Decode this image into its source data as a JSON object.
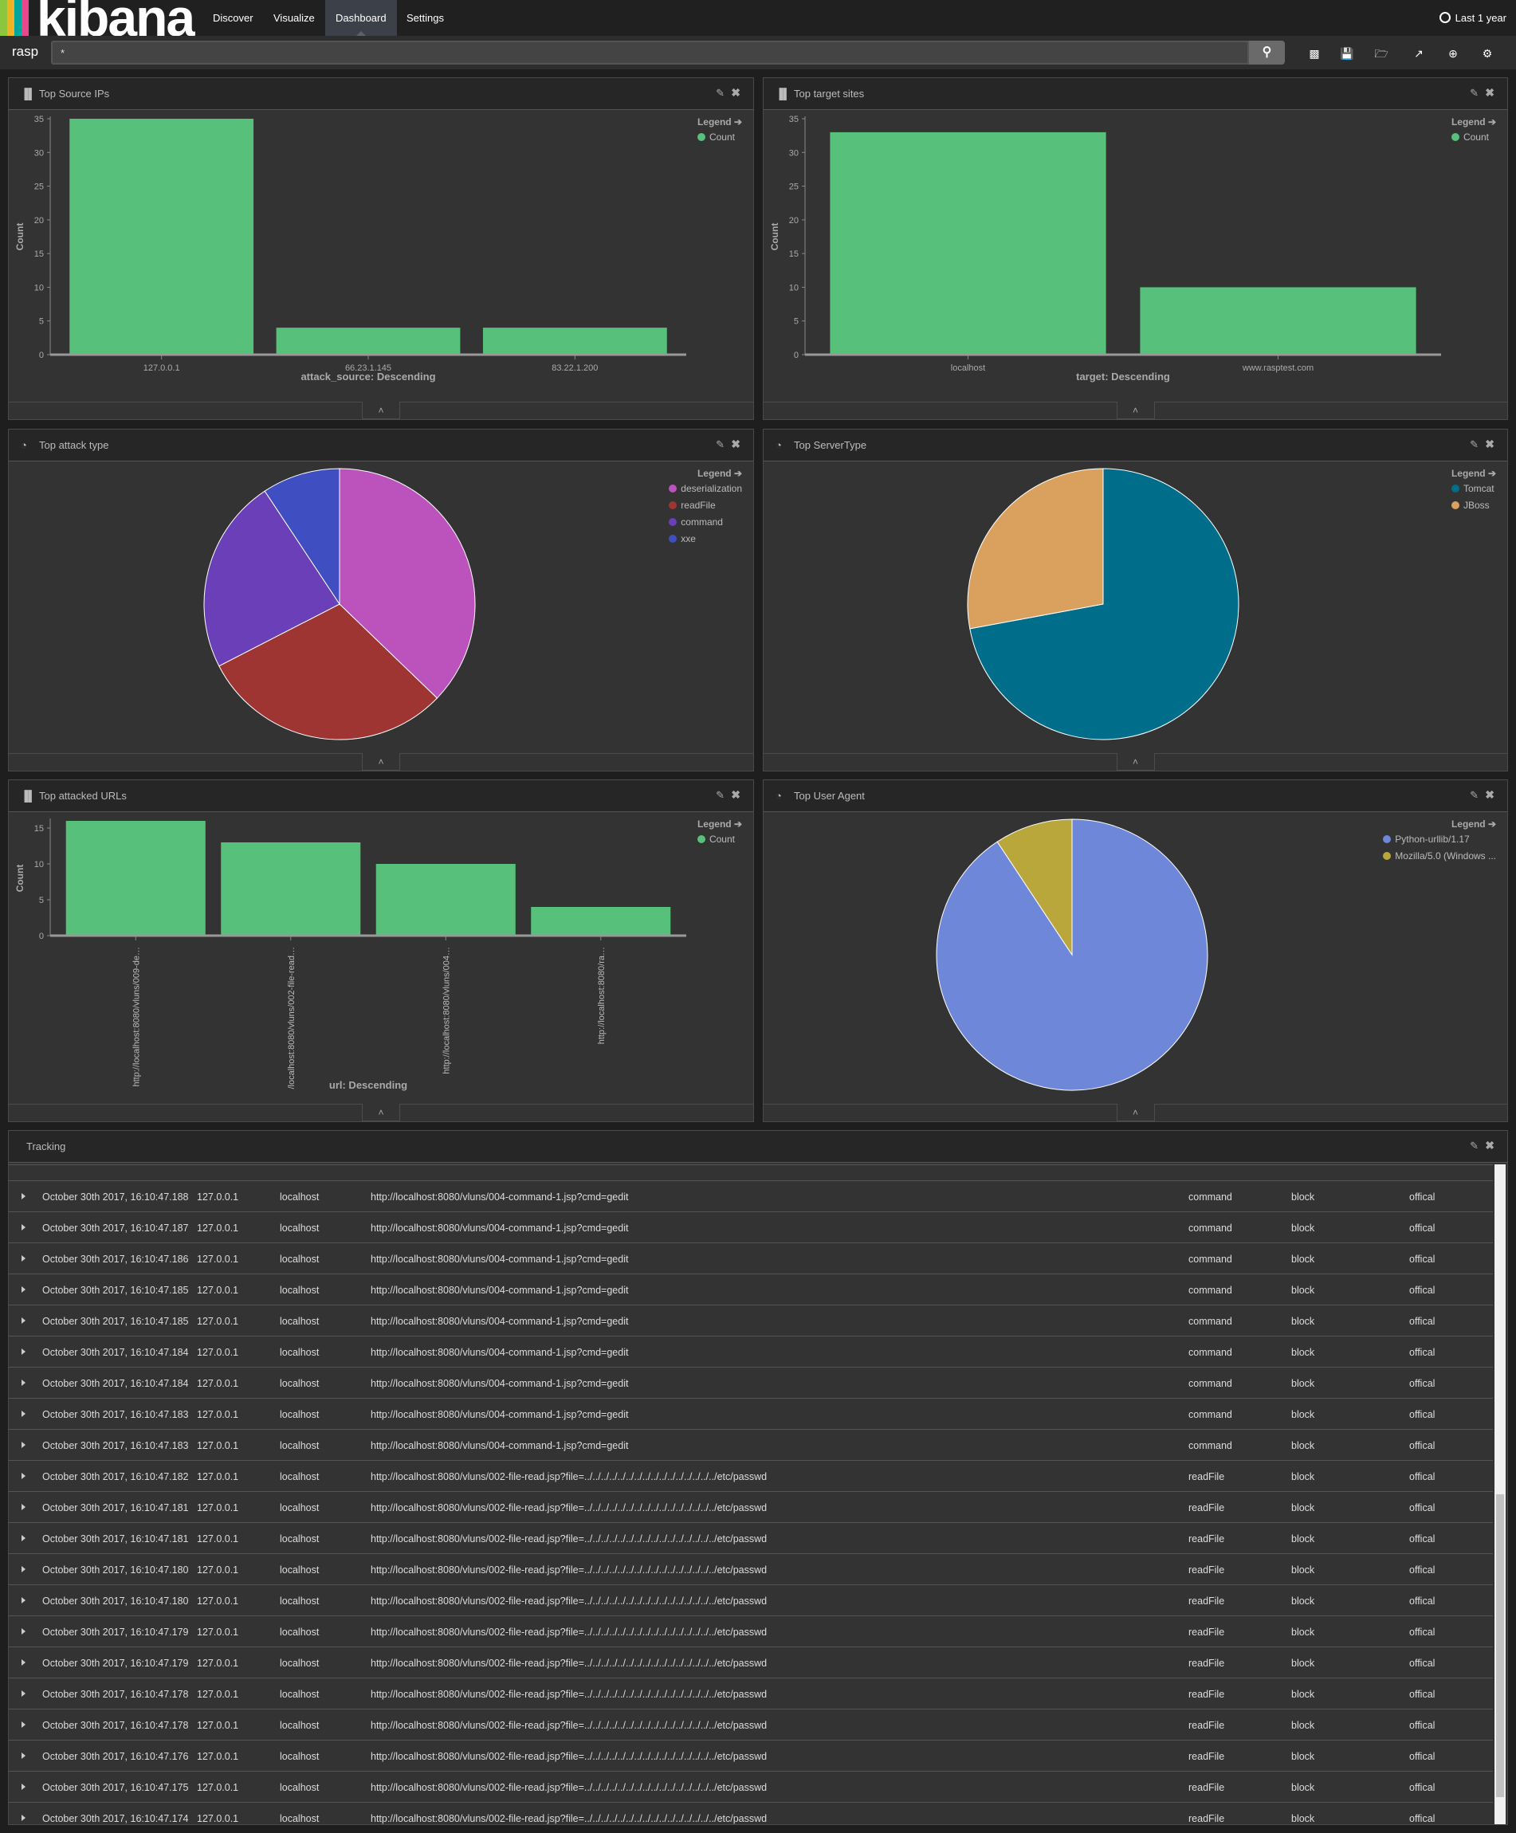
{
  "app": {
    "logo": "kibana",
    "logo_colors": [
      "#8cc63f",
      "#f0b323",
      "#00a69b",
      "#e8488b"
    ]
  },
  "nav": {
    "items": [
      {
        "label": "Discover"
      },
      {
        "label": "Visualize"
      },
      {
        "label": "Dashboard",
        "active": true
      },
      {
        "label": "Settings"
      }
    ],
    "time": "Last 1 year"
  },
  "search": {
    "index": "rasp",
    "query": "*"
  },
  "toolbar": [
    "new-dashboard",
    "save",
    "open",
    "share",
    "add-visualization",
    "options"
  ],
  "panels": {
    "source_ips": {
      "title": "Top Source IPs"
    },
    "target_sites": {
      "title": "Top target sites"
    },
    "attack_type": {
      "title": "Top attack type"
    },
    "server_type": {
      "title": "Top ServerType"
    },
    "urls": {
      "title": "Top attacked URLs"
    },
    "user_agent": {
      "title": "Top User Agent"
    },
    "tracking": {
      "title": "Tracking"
    }
  },
  "legend_title": "Legend",
  "chart_data": [
    {
      "id": "source_ips",
      "type": "bar",
      "categories": [
        "127.0.0.1",
        "66.23.1.145",
        "83.22.1.200"
      ],
      "values": [
        35,
        4,
        4
      ],
      "xlabel": "attack_source: Descending",
      "ylabel": "Count",
      "ylim": [
        0,
        35
      ],
      "yticks": [
        0,
        5,
        10,
        15,
        20,
        25,
        30,
        35
      ],
      "legend": [
        "Count"
      ],
      "color": "#57c17b"
    },
    {
      "id": "target_sites",
      "type": "bar",
      "categories": [
        "localhost",
        "www.rasptest.com"
      ],
      "values": [
        33,
        10
      ],
      "xlabel": "target: Descending",
      "ylabel": "Count",
      "ylim": [
        0,
        35
      ],
      "yticks": [
        0,
        5,
        10,
        15,
        20,
        25,
        30,
        35
      ],
      "legend": [
        "Count"
      ],
      "color": "#57c17b"
    },
    {
      "id": "attack_type",
      "type": "pie",
      "labels": [
        "deserialization",
        "readFile",
        "command",
        "xxe"
      ],
      "values": [
        16,
        13,
        10,
        4
      ],
      "colors": [
        "#bc52bc",
        "#9e3533",
        "#6a3fb8",
        "#3f4fc2"
      ]
    },
    {
      "id": "server_type",
      "type": "pie",
      "labels": [
        "Tomcat",
        "JBoss"
      ],
      "values": [
        31,
        12
      ],
      "colors": [
        "#006e8a",
        "#daa05d"
      ]
    },
    {
      "id": "urls",
      "type": "bar",
      "categories": [
        "http://localhost:8080/vluns/009-de…",
        "/localhost:8080/vluns/002-file-read…",
        "http://localhost:8080/vluns/004…",
        "http://localhost:8080/ra…"
      ],
      "values": [
        16,
        13,
        10,
        4
      ],
      "xlabel": "url: Descending",
      "ylabel": "Count",
      "ylim": [
        0,
        16
      ],
      "yticks": [
        0,
        5,
        10,
        15
      ],
      "legend": [
        "Count"
      ],
      "color": "#57c17b",
      "rotate": true
    },
    {
      "id": "user_agent",
      "type": "pie",
      "labels": [
        "Python-urllib/1.17",
        "Mozilla/5.0 (Windows ..."
      ],
      "values": [
        39,
        4
      ],
      "colors": [
        "#6f87d8",
        "#b9a73c"
      ]
    }
  ],
  "tracking_rows": [
    {
      "time": "October 30th 2017, 16:10:47.188",
      "ip": "127.0.0.1",
      "host": "localhost",
      "url": "http://localhost:8080/vluns/004-command-1.jsp?cmd=gedit",
      "type": "command",
      "action": "block",
      "level": "offical"
    },
    {
      "time": "October 30th 2017, 16:10:47.187",
      "ip": "127.0.0.1",
      "host": "localhost",
      "url": "http://localhost:8080/vluns/004-command-1.jsp?cmd=gedit",
      "type": "command",
      "action": "block",
      "level": "offical"
    },
    {
      "time": "October 30th 2017, 16:10:47.186",
      "ip": "127.0.0.1",
      "host": "localhost",
      "url": "http://localhost:8080/vluns/004-command-1.jsp?cmd=gedit",
      "type": "command",
      "action": "block",
      "level": "offical"
    },
    {
      "time": "October 30th 2017, 16:10:47.185",
      "ip": "127.0.0.1",
      "host": "localhost",
      "url": "http://localhost:8080/vluns/004-command-1.jsp?cmd=gedit",
      "type": "command",
      "action": "block",
      "level": "offical"
    },
    {
      "time": "October 30th 2017, 16:10:47.185",
      "ip": "127.0.0.1",
      "host": "localhost",
      "url": "http://localhost:8080/vluns/004-command-1.jsp?cmd=gedit",
      "type": "command",
      "action": "block",
      "level": "offical"
    },
    {
      "time": "October 30th 2017, 16:10:47.184",
      "ip": "127.0.0.1",
      "host": "localhost",
      "url": "http://localhost:8080/vluns/004-command-1.jsp?cmd=gedit",
      "type": "command",
      "action": "block",
      "level": "offical"
    },
    {
      "time": "October 30th 2017, 16:10:47.184",
      "ip": "127.0.0.1",
      "host": "localhost",
      "url": "http://localhost:8080/vluns/004-command-1.jsp?cmd=gedit",
      "type": "command",
      "action": "block",
      "level": "offical"
    },
    {
      "time": "October 30th 2017, 16:10:47.183",
      "ip": "127.0.0.1",
      "host": "localhost",
      "url": "http://localhost:8080/vluns/004-command-1.jsp?cmd=gedit",
      "type": "command",
      "action": "block",
      "level": "offical"
    },
    {
      "time": "October 30th 2017, 16:10:47.183",
      "ip": "127.0.0.1",
      "host": "localhost",
      "url": "http://localhost:8080/vluns/004-command-1.jsp?cmd=gedit",
      "type": "command",
      "action": "block",
      "level": "offical"
    },
    {
      "time": "October 30th 2017, 16:10:47.182",
      "ip": "127.0.0.1",
      "host": "localhost",
      "url": "http://localhost:8080/vluns/002-file-read.jsp?file=../../../../../../../../../../../../../../../../etc/passwd",
      "type": "readFile",
      "action": "block",
      "level": "offical"
    },
    {
      "time": "October 30th 2017, 16:10:47.181",
      "ip": "127.0.0.1",
      "host": "localhost",
      "url": "http://localhost:8080/vluns/002-file-read.jsp?file=../../../../../../../../../../../../../../../../etc/passwd",
      "type": "readFile",
      "action": "block",
      "level": "offical"
    },
    {
      "time": "October 30th 2017, 16:10:47.181",
      "ip": "127.0.0.1",
      "host": "localhost",
      "url": "http://localhost:8080/vluns/002-file-read.jsp?file=../../../../../../../../../../../../../../../../etc/passwd",
      "type": "readFile",
      "action": "block",
      "level": "offical"
    },
    {
      "time": "October 30th 2017, 16:10:47.180",
      "ip": "127.0.0.1",
      "host": "localhost",
      "url": "http://localhost:8080/vluns/002-file-read.jsp?file=../../../../../../../../../../../../../../../../etc/passwd",
      "type": "readFile",
      "action": "block",
      "level": "offical"
    },
    {
      "time": "October 30th 2017, 16:10:47.180",
      "ip": "127.0.0.1",
      "host": "localhost",
      "url": "http://localhost:8080/vluns/002-file-read.jsp?file=../../../../../../../../../../../../../../../../etc/passwd",
      "type": "readFile",
      "action": "block",
      "level": "offical"
    },
    {
      "time": "October 30th 2017, 16:10:47.179",
      "ip": "127.0.0.1",
      "host": "localhost",
      "url": "http://localhost:8080/vluns/002-file-read.jsp?file=../../../../../../../../../../../../../../../../etc/passwd",
      "type": "readFile",
      "action": "block",
      "level": "offical"
    },
    {
      "time": "October 30th 2017, 16:10:47.179",
      "ip": "127.0.0.1",
      "host": "localhost",
      "url": "http://localhost:8080/vluns/002-file-read.jsp?file=../../../../../../../../../../../../../../../../etc/passwd",
      "type": "readFile",
      "action": "block",
      "level": "offical"
    },
    {
      "time": "October 30th 2017, 16:10:47.178",
      "ip": "127.0.0.1",
      "host": "localhost",
      "url": "http://localhost:8080/vluns/002-file-read.jsp?file=../../../../../../../../../../../../../../../../etc/passwd",
      "type": "readFile",
      "action": "block",
      "level": "offical"
    },
    {
      "time": "October 30th 2017, 16:10:47.178",
      "ip": "127.0.0.1",
      "host": "localhost",
      "url": "http://localhost:8080/vluns/002-file-read.jsp?file=../../../../../../../../../../../../../../../../etc/passwd",
      "type": "readFile",
      "action": "block",
      "level": "offical"
    },
    {
      "time": "October 30th 2017, 16:10:47.176",
      "ip": "127.0.0.1",
      "host": "localhost",
      "url": "http://localhost:8080/vluns/002-file-read.jsp?file=../../../../../../../../../../../../../../../../etc/passwd",
      "type": "readFile",
      "action": "block",
      "level": "offical"
    },
    {
      "time": "October 30th 2017, 16:10:47.175",
      "ip": "127.0.0.1",
      "host": "localhost",
      "url": "http://localhost:8080/vluns/002-file-read.jsp?file=../../../../../../../../../../../../../../../../etc/passwd",
      "type": "readFile",
      "action": "block",
      "level": "offical"
    },
    {
      "time": "October 30th 2017, 16:10:47.174",
      "ip": "127.0.0.1",
      "host": "localhost",
      "url": "http://localhost:8080/vluns/002-file-read.jsp?file=../../../../../../../../../../../../../../../../etc/passwd",
      "type": "readFile",
      "action": "block",
      "level": "offical"
    }
  ]
}
